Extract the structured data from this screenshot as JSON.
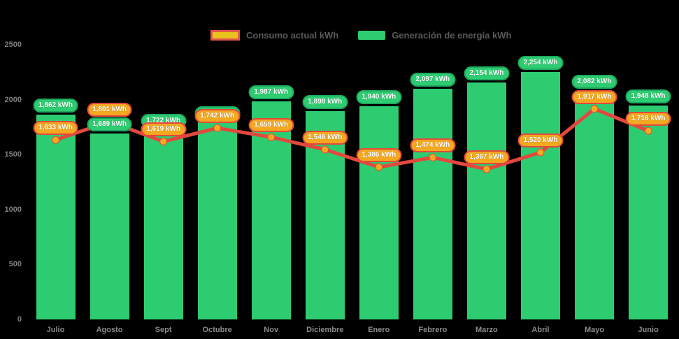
{
  "chart_data": {
    "type": "bar",
    "title": "",
    "xlabel": "",
    "ylabel": "",
    "categories": [
      "Julio",
      "Agosto",
      "Sept",
      "Octubre",
      "Nov",
      "Diciembre",
      "Enero",
      "Febrero",
      "Marzo",
      "Abril",
      "Mayo",
      "Junio"
    ],
    "series": [
      {
        "name": "Generación de energía kWh",
        "type": "bar",
        "color": "#2ecc71",
        "values": [
          1862,
          1689,
          1722,
          1796,
          1987,
          1898,
          1940,
          2097,
          2154,
          2254,
          2082,
          1948
        ],
        "labels": [
          "1,862 kWh",
          "1,689 kWh",
          "1,722 kWh",
          "1,796 kWh",
          "1,987 kWh",
          "1,898 kWh",
          "1,940 kWh",
          "2,097 kWh",
          "2,154 kWh",
          "2,254 kWh",
          "2,082 kWh",
          "1,948 kWh"
        ]
      },
      {
        "name": "Consumo actual kWh",
        "type": "line",
        "color": "#e2483d",
        "marker_color": "#f6aa20",
        "values": [
          1633,
          1801,
          1619,
          1742,
          1659,
          1546,
          1386,
          1474,
          1367,
          1520,
          1917,
          1716
        ],
        "labels": [
          "1,633 kWh",
          "1,801 kWh",
          "1,619 kWh",
          "1,742 kWh",
          "1,659 kWh",
          "1,546 kWh",
          "1,386 kWh",
          "1,474 kWh",
          "1,367 kWh",
          "1,520 kWh",
          "1,917 kWh",
          "1,716 kWh"
        ]
      }
    ],
    "ylim": [
      0,
      2500
    ],
    "yticks": [
      0,
      500,
      1000,
      1500,
      2000,
      2500
    ],
    "grid": false,
    "legend_position": "top"
  },
  "legend": {
    "items": [
      {
        "label": "Consumo actual kWh",
        "swatch_fill": "#eac31a",
        "swatch_border": "#e2574c"
      },
      {
        "label": "Generación de energía kWh",
        "swatch_fill": "#2ecc71",
        "swatch_border": ""
      }
    ]
  },
  "colors": {
    "background": "#000000",
    "bar": "#2ecc71",
    "bar_label_border": "#1daa5f",
    "line": "#e2483d",
    "marker": "#f6aa20",
    "cons_label_fill": "#f3a81f",
    "axis_text": "#7f7f7f",
    "legend_text": "#5a5a5a"
  }
}
